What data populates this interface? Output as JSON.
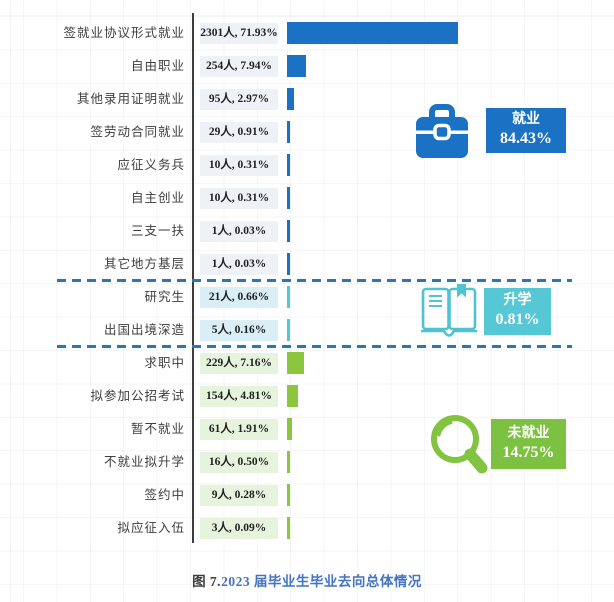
{
  "caption": {
    "prefix": "图 7.",
    "text": "2023 届毕业生毕业去向总体情况"
  },
  "colors": {
    "employment_blue": "#1B72C4",
    "study_cyan": "#56C8D5",
    "unemployed_green": "#7DC142",
    "bar_green": "#8CC63F",
    "axis": "#3d3d3d",
    "separator_blue": "#2E75B6",
    "caption_blue": "#4472C4",
    "value_bg_employment": "#EEF2F7",
    "value_bg_study": "#D9EEF6",
    "value_bg_unemployed": "#E6F4DE"
  },
  "chart_data": {
    "type": "bar",
    "orientation": "horizontal",
    "title": "图 7.2023 届毕业生毕业去向总体情况",
    "xlim_percent": [
      0,
      75
    ],
    "grid": "faint",
    "sections": [
      {
        "name": "就业",
        "percent_label": "84.43%",
        "icon": "briefcase-icon",
        "bar_color": "#1B72C4",
        "value_bg": "#EEF2F7",
        "rows": [
          {
            "label": "签就业协议形式就业",
            "count": 2301,
            "percent": 71.93,
            "value_text": "2301人, 71.93%"
          },
          {
            "label": "自由职业",
            "count": 254,
            "percent": 7.94,
            "value_text": "254人, 7.94%"
          },
          {
            "label": "其他录用证明就业",
            "count": 95,
            "percent": 2.97,
            "value_text": "95人, 2.97%"
          },
          {
            "label": "签劳动合同就业",
            "count": 29,
            "percent": 0.91,
            "value_text": "29人, 0.91%"
          },
          {
            "label": "应征义务兵",
            "count": 10,
            "percent": 0.31,
            "value_text": "10人, 0.31%"
          },
          {
            "label": "自主创业",
            "count": 10,
            "percent": 0.31,
            "value_text": "10人, 0.31%"
          },
          {
            "label": "三支一扶",
            "count": 1,
            "percent": 0.03,
            "value_text": "1人, 0.03%"
          },
          {
            "label": "其它地方基层",
            "count": 1,
            "percent": 0.03,
            "value_text": "1人, 0.03%"
          }
        ]
      },
      {
        "name": "升学",
        "percent_label": "0.81%",
        "icon": "open-book-icon",
        "bar_color": "#56C8D5",
        "value_bg": "#D9EEF6",
        "rows": [
          {
            "label": "研究生",
            "count": 21,
            "percent": 0.66,
            "value_text": "21人, 0.66%"
          },
          {
            "label": "出国出境深造",
            "count": 5,
            "percent": 0.16,
            "value_text": "5人, 0.16%"
          }
        ]
      },
      {
        "name": "未就业",
        "percent_label": "14.75%",
        "icon": "magnifier-icon",
        "bar_color": "#8CC63F",
        "value_bg": "#E6F4DE",
        "rows": [
          {
            "label": "求职中",
            "count": 229,
            "percent": 7.16,
            "value_text": "229人, 7.16%"
          },
          {
            "label": "拟参加公招考试",
            "count": 154,
            "percent": 4.81,
            "value_text": "154人, 4.81%"
          },
          {
            "label": "暂不就业",
            "count": 61,
            "percent": 1.91,
            "value_text": "61人, 1.91%"
          },
          {
            "label": "不就业拟升学",
            "count": 16,
            "percent": 0.5,
            "value_text": "16人, 0.50%"
          },
          {
            "label": "签约中",
            "count": 9,
            "percent": 0.28,
            "value_text": "9人, 0.28%"
          },
          {
            "label": "拟应征入伍",
            "count": 3,
            "percent": 0.09,
            "value_text": "3人, 0.09%"
          }
        ]
      }
    ]
  }
}
